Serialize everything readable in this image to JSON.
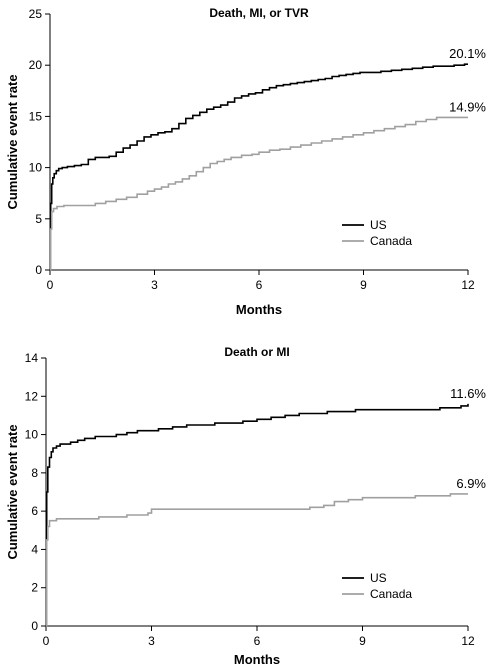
{
  "chart_data": [
    {
      "type": "line",
      "title": "Death, MI, or TVR",
      "xlabel": "Months",
      "ylabel": "Cumulative event rate",
      "xlim": [
        0,
        12
      ],
      "ylim": [
        0,
        25
      ],
      "xticks": [
        0,
        3,
        6,
        9,
        12
      ],
      "yticks": [
        0,
        5,
        10,
        15,
        20,
        25
      ],
      "grid": false,
      "legend_position": "lower-right",
      "series": [
        {
          "name": "US",
          "color": "#000000",
          "end_label": "20.1%",
          "x": [
            0,
            0.02,
            0.05,
            0.08,
            0.12,
            0.18,
            0.25,
            0.35,
            0.5,
            0.7,
            0.9,
            1.1,
            1.3,
            1.5,
            1.7,
            1.9,
            2.1,
            2.3,
            2.5,
            2.7,
            2.9,
            3.1,
            3.3,
            3.5,
            3.7,
            3.9,
            4.1,
            4.3,
            4.5,
            4.7,
            4.9,
            5.1,
            5.3,
            5.5,
            5.7,
            5.9,
            6.1,
            6.3,
            6.5,
            6.7,
            6.9,
            7.1,
            7.3,
            7.5,
            7.7,
            7.9,
            8.1,
            8.3,
            8.5,
            8.7,
            8.9,
            9.2,
            9.5,
            9.8,
            10.1,
            10.4,
            10.7,
            11.0,
            11.3,
            11.6,
            11.9,
            12.0
          ],
          "y": [
            0,
            6.5,
            8.4,
            9.0,
            9.4,
            9.7,
            9.9,
            10.0,
            10.1,
            10.2,
            10.3,
            10.8,
            11.0,
            11.0,
            11.1,
            11.5,
            11.9,
            12.2,
            12.6,
            13.0,
            13.2,
            13.4,
            13.5,
            13.8,
            14.3,
            14.8,
            15.1,
            15.4,
            15.7,
            15.9,
            16.1,
            16.4,
            16.8,
            17.0,
            17.2,
            17.3,
            17.6,
            17.8,
            18.0,
            18.1,
            18.2,
            18.3,
            18.4,
            18.5,
            18.6,
            18.7,
            18.9,
            19.0,
            19.1,
            19.2,
            19.3,
            19.3,
            19.4,
            19.5,
            19.6,
            19.7,
            19.8,
            19.9,
            19.9,
            20.0,
            20.1,
            20.1
          ]
        },
        {
          "name": "Canada",
          "color": "#a0a0a0",
          "end_label": "14.9%",
          "x": [
            0,
            0.02,
            0.05,
            0.1,
            0.2,
            0.4,
            0.7,
            1.0,
            1.3,
            1.6,
            1.9,
            2.2,
            2.5,
            2.8,
            3.0,
            3.2,
            3.4,
            3.6,
            3.8,
            4.0,
            4.2,
            4.4,
            4.6,
            4.8,
            5.0,
            5.2,
            5.5,
            5.8,
            6.0,
            6.3,
            6.6,
            6.9,
            7.2,
            7.5,
            7.8,
            8.1,
            8.4,
            8.7,
            9.0,
            9.3,
            9.6,
            9.9,
            10.2,
            10.5,
            10.8,
            11.1,
            11.4,
            11.7,
            12.0
          ],
          "y": [
            0,
            4.0,
            5.7,
            6.0,
            6.2,
            6.3,
            6.3,
            6.3,
            6.5,
            6.7,
            6.9,
            7.1,
            7.4,
            7.7,
            7.9,
            8.1,
            8.4,
            8.6,
            8.9,
            9.2,
            9.6,
            10.0,
            10.4,
            10.6,
            10.8,
            11.0,
            11.2,
            11.3,
            11.5,
            11.7,
            11.8,
            12.0,
            12.2,
            12.4,
            12.6,
            12.8,
            13.0,
            13.2,
            13.4,
            13.6,
            13.8,
            14.0,
            14.2,
            14.5,
            14.7,
            14.9,
            14.9,
            14.9,
            14.9
          ]
        }
      ]
    },
    {
      "type": "line",
      "title": "Death or MI",
      "xlabel": "Months",
      "ylabel": "Cumulative event rate",
      "xlim": [
        0,
        12
      ],
      "ylim": [
        0,
        14
      ],
      "xticks": [
        0,
        3,
        6,
        9,
        12
      ],
      "yticks": [
        0,
        2,
        4,
        6,
        8,
        10,
        12,
        14
      ],
      "grid": false,
      "legend_position": "lower-right",
      "series": [
        {
          "name": "US",
          "color": "#000000",
          "end_label": "11.6%",
          "x": [
            0,
            0.02,
            0.05,
            0.1,
            0.15,
            0.2,
            0.3,
            0.4,
            0.5,
            0.7,
            0.9,
            1.1,
            1.4,
            1.7,
            2.0,
            2.3,
            2.6,
            2.9,
            3.2,
            3.6,
            4.0,
            4.4,
            4.8,
            5.2,
            5.6,
            6.0,
            6.4,
            6.8,
            7.2,
            7.6,
            8.0,
            8.4,
            8.8,
            9.2,
            9.6,
            10.0,
            10.4,
            10.8,
            11.2,
            11.6,
            11.8,
            12.0
          ],
          "y": [
            0,
            7.0,
            8.3,
            8.8,
            9.1,
            9.3,
            9.4,
            9.5,
            9.5,
            9.6,
            9.7,
            9.8,
            9.9,
            9.9,
            10.0,
            10.1,
            10.2,
            10.2,
            10.3,
            10.4,
            10.5,
            10.5,
            10.6,
            10.6,
            10.7,
            10.8,
            10.9,
            11.0,
            11.1,
            11.1,
            11.2,
            11.2,
            11.3,
            11.3,
            11.3,
            11.3,
            11.3,
            11.3,
            11.4,
            11.4,
            11.5,
            11.6
          ]
        },
        {
          "name": "Canada",
          "color": "#a0a0a0",
          "end_label": "6.9%",
          "x": [
            0,
            0.02,
            0.05,
            0.1,
            0.3,
            0.6,
            1.0,
            1.5,
            2.0,
            2.3,
            2.6,
            2.9,
            3.0,
            3.5,
            4.0,
            5.0,
            6.0,
            7.0,
            7.5,
            7.9,
            8.2,
            8.6,
            9.0,
            9.5,
            10.0,
            10.5,
            11.0,
            11.5,
            12.0
          ],
          "y": [
            0,
            4.5,
            5.2,
            5.5,
            5.6,
            5.6,
            5.6,
            5.7,
            5.7,
            5.8,
            5.8,
            5.9,
            6.1,
            6.1,
            6.1,
            6.1,
            6.1,
            6.1,
            6.2,
            6.3,
            6.5,
            6.6,
            6.7,
            6.7,
            6.7,
            6.8,
            6.8,
            6.9,
            6.9
          ]
        }
      ]
    }
  ]
}
